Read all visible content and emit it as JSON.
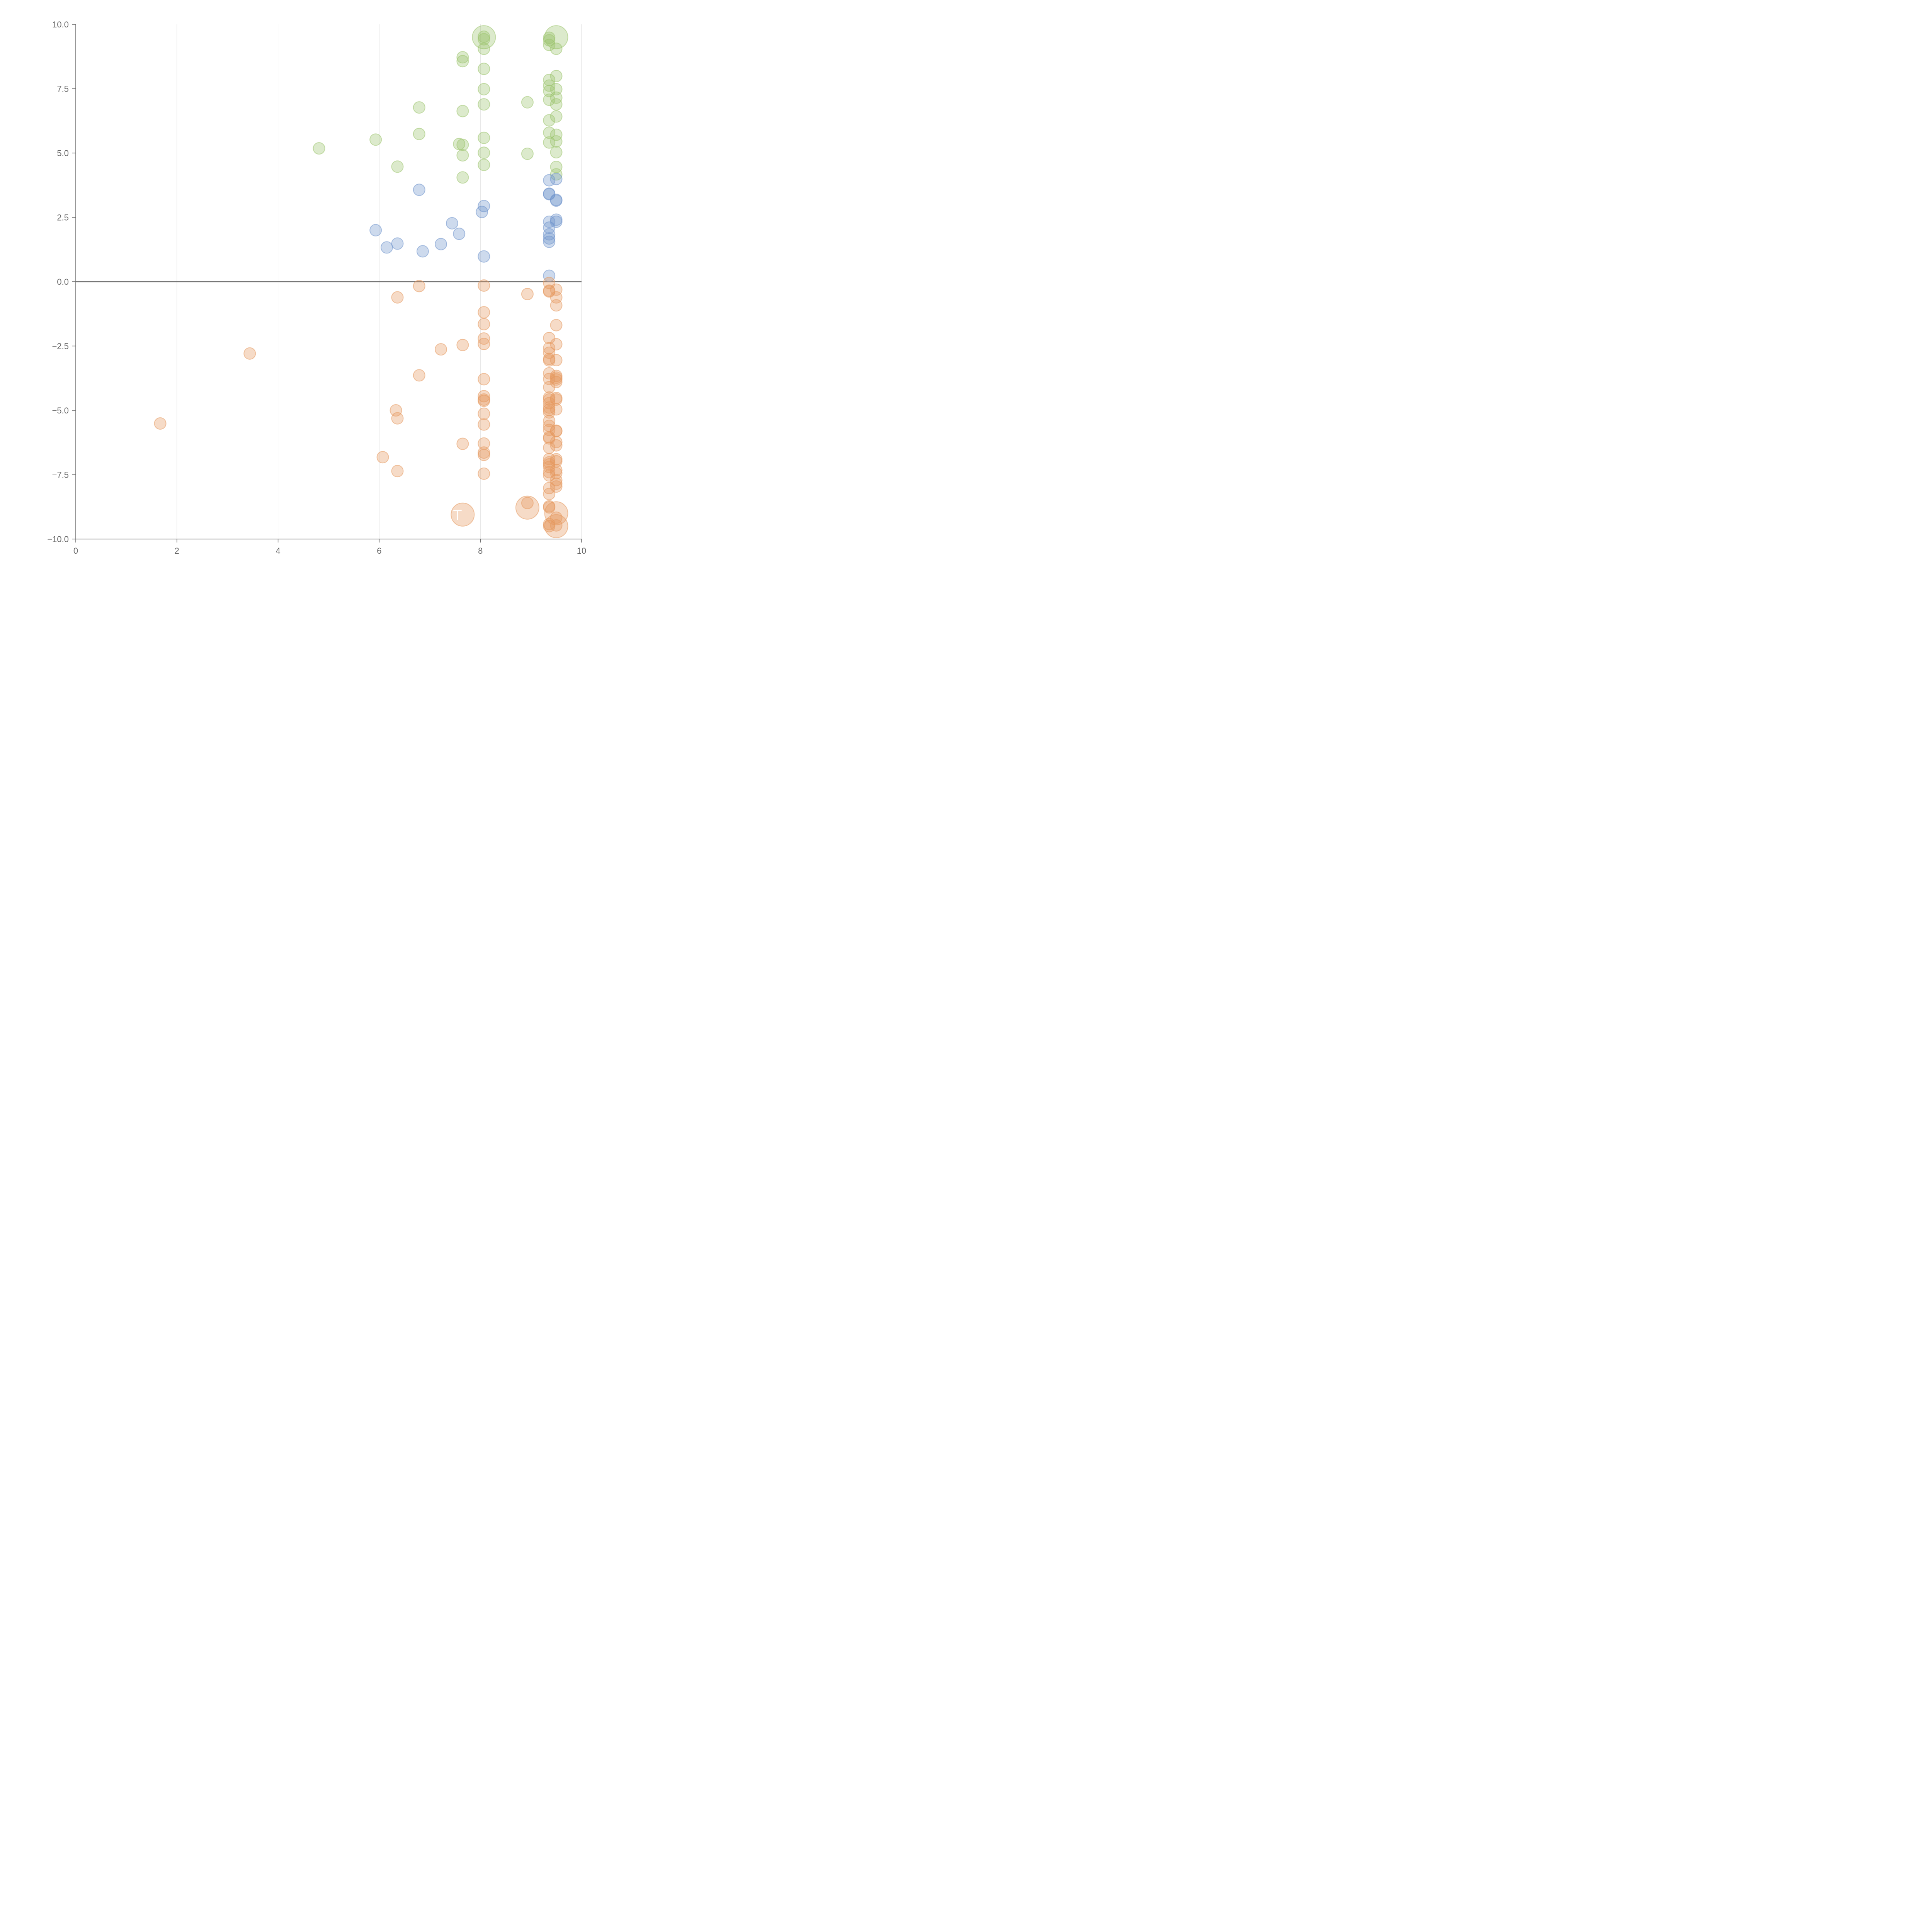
{
  "chart_data": {
    "type": "scatter",
    "title": "",
    "xlabel": "",
    "ylabel": "",
    "xlim": [
      0,
      10
    ],
    "ylim": [
      -10,
      10
    ],
    "x_ticks": [
      0,
      2,
      4,
      6,
      8,
      10
    ],
    "y_ticks": [
      -10,
      -7.5,
      -5,
      -2.5,
      0,
      2.5,
      5,
      7.5,
      10
    ],
    "x_tick_labels": [
      "0",
      "2",
      "4",
      "6",
      "8",
      "10"
    ],
    "y_tick_labels": [
      "−10.0",
      "−7.5",
      "−5.0",
      "−2.5",
      "0.0",
      "2.5",
      "5.0",
      "7.5",
      "10.0"
    ],
    "grid": "vertical",
    "legend": "none",
    "annotation": "T",
    "series": [
      {
        "color": "#9cc46e",
        "points": [
          [
            4.81,
            5.18
          ],
          [
            5.93,
            5.52
          ],
          [
            6.36,
            4.47
          ],
          [
            6.79,
            6.77
          ],
          [
            6.79,
            5.74
          ],
          [
            7.58,
            5.35
          ],
          [
            7.65,
            8.72
          ],
          [
            7.65,
            8.57
          ],
          [
            7.65,
            6.63
          ],
          [
            7.65,
            5.32
          ],
          [
            7.65,
            4.91
          ],
          [
            7.65,
            4.05
          ],
          [
            8.07,
            9.52
          ],
          [
            8.07,
            9.42
          ],
          [
            8.07,
            9.05
          ],
          [
            8.07,
            8.27
          ],
          [
            8.07,
            7.48
          ],
          [
            8.07,
            6.89
          ],
          [
            8.07,
            5.59
          ],
          [
            8.07,
            5.01
          ],
          [
            8.07,
            4.54
          ],
          [
            8.93,
            6.97
          ],
          [
            8.93,
            4.97
          ],
          [
            9.36,
            9.48
          ],
          [
            9.36,
            9.38
          ],
          [
            9.36,
            9.2
          ],
          [
            9.36,
            7.84
          ],
          [
            9.36,
            7.62
          ],
          [
            9.36,
            7.41
          ],
          [
            9.36,
            7.07
          ],
          [
            9.36,
            6.27
          ],
          [
            9.36,
            5.79
          ],
          [
            9.36,
            5.41
          ],
          [
            9.5,
            9.05
          ],
          [
            9.5,
            7.99
          ],
          [
            9.5,
            7.48
          ],
          [
            9.5,
            7.15
          ],
          [
            9.5,
            6.89
          ],
          [
            9.5,
            6.42
          ],
          [
            9.5,
            5.71
          ],
          [
            9.5,
            5.45
          ],
          [
            9.5,
            5.03
          ],
          [
            9.5,
            4.46
          ],
          [
            9.5,
            4.17
          ]
        ],
        "big_points": [
          [
            8.07,
            9.5
          ],
          [
            9.5,
            9.5
          ]
        ]
      },
      {
        "color": "#7094cc",
        "points": [
          [
            5.93,
            2.0
          ],
          [
            6.15,
            1.33
          ],
          [
            6.36,
            1.48
          ],
          [
            6.79,
            3.57
          ],
          [
            6.86,
            1.18
          ],
          [
            7.22,
            1.46
          ],
          [
            7.44,
            2.27
          ],
          [
            7.58,
            1.86
          ],
          [
            8.03,
            2.71
          ],
          [
            8.07,
            2.94
          ],
          [
            8.07,
            0.98
          ],
          [
            9.36,
            3.94
          ],
          [
            9.36,
            3.42
          ],
          [
            9.36,
            3.4
          ],
          [
            9.36,
            2.33
          ],
          [
            9.36,
            2.1
          ],
          [
            9.36,
            1.84
          ],
          [
            9.36,
            1.68
          ],
          [
            9.36,
            1.55
          ],
          [
            9.36,
            0.23
          ],
          [
            9.5,
            3.99
          ],
          [
            9.5,
            3.18
          ],
          [
            9.5,
            3.15
          ],
          [
            9.5,
            2.41
          ],
          [
            9.5,
            2.33
          ]
        ],
        "big_points": []
      },
      {
        "color": "#e6995e",
        "points": [
          [
            1.67,
            -5.51
          ],
          [
            3.44,
            -2.79
          ],
          [
            6.07,
            -6.82
          ],
          [
            6.33,
            -5.0
          ],
          [
            6.36,
            -0.61
          ],
          [
            6.36,
            -5.31
          ],
          [
            6.36,
            -7.36
          ],
          [
            6.79,
            -0.17
          ],
          [
            6.79,
            -3.64
          ],
          [
            7.22,
            -2.63
          ],
          [
            7.65,
            -2.46
          ],
          [
            7.65,
            -6.3
          ],
          [
            8.07,
            -0.15
          ],
          [
            8.07,
            -1.19
          ],
          [
            8.07,
            -1.65
          ],
          [
            8.07,
            -2.21
          ],
          [
            8.07,
            -2.42
          ],
          [
            8.07,
            -3.79
          ],
          [
            8.07,
            -4.45
          ],
          [
            8.07,
            -4.58
          ],
          [
            8.07,
            -4.63
          ],
          [
            8.07,
            -5.13
          ],
          [
            8.07,
            -5.55
          ],
          [
            8.07,
            -6.29
          ],
          [
            8.07,
            -6.64
          ],
          [
            8.07,
            -6.73
          ],
          [
            8.07,
            -7.46
          ],
          [
            8.93,
            -0.48
          ],
          [
            8.93,
            -8.6
          ],
          [
            9.36,
            -0.05
          ],
          [
            9.36,
            -0.35
          ],
          [
            9.36,
            -0.38
          ],
          [
            9.36,
            -2.19
          ],
          [
            9.36,
            -2.58
          ],
          [
            9.36,
            -2.76
          ],
          [
            9.36,
            -3.0
          ],
          [
            9.36,
            -3.06
          ],
          [
            9.36,
            -3.56
          ],
          [
            9.36,
            -3.78
          ],
          [
            9.36,
            -4.1
          ],
          [
            9.36,
            -4.5
          ],
          [
            9.36,
            -4.58
          ],
          [
            9.36,
            -4.72
          ],
          [
            9.36,
            -4.89
          ],
          [
            9.36,
            -4.98
          ],
          [
            9.36,
            -5.08
          ],
          [
            9.36,
            -5.41
          ],
          [
            9.36,
            -5.6
          ],
          [
            9.36,
            -5.76
          ],
          [
            9.36,
            -6.04
          ],
          [
            9.36,
            -6.09
          ],
          [
            9.36,
            -6.45
          ],
          [
            9.36,
            -6.89
          ],
          [
            9.36,
            -7.02
          ],
          [
            9.36,
            -7.1
          ],
          [
            9.36,
            -7.2
          ],
          [
            9.36,
            -7.4
          ],
          [
            9.36,
            -7.53
          ],
          [
            9.36,
            -8.02
          ],
          [
            9.36,
            -8.25
          ],
          [
            9.36,
            -8.73
          ],
          [
            9.36,
            -8.77
          ],
          [
            9.36,
            -9.42
          ],
          [
            9.36,
            -9.5
          ],
          [
            9.5,
            -0.31
          ],
          [
            9.5,
            -0.61
          ],
          [
            9.5,
            -0.92
          ],
          [
            9.5,
            -1.69
          ],
          [
            9.5,
            -2.43
          ],
          [
            9.5,
            -3.05
          ],
          [
            9.5,
            -3.66
          ],
          [
            9.5,
            -3.73
          ],
          [
            9.5,
            -3.8
          ],
          [
            9.5,
            -3.9
          ],
          [
            9.5,
            -4.52
          ],
          [
            9.5,
            -4.58
          ],
          [
            9.5,
            -4.96
          ],
          [
            9.5,
            -5.79
          ],
          [
            9.5,
            -5.81
          ],
          [
            9.5,
            -6.23
          ],
          [
            9.5,
            -6.36
          ],
          [
            9.5,
            -6.9
          ],
          [
            9.5,
            -6.98
          ],
          [
            9.5,
            -7.32
          ],
          [
            9.5,
            -7.44
          ],
          [
            9.5,
            -7.71
          ],
          [
            9.5,
            -7.85
          ],
          [
            9.5,
            -7.96
          ],
          [
            9.5,
            -9.17
          ],
          [
            9.5,
            -9.47
          ]
        ],
        "big_points": [
          [
            7.65,
            -9.05
          ],
          [
            8.93,
            -8.78
          ],
          [
            9.5,
            -9.0
          ],
          [
            9.5,
            -9.5
          ]
        ]
      }
    ]
  }
}
